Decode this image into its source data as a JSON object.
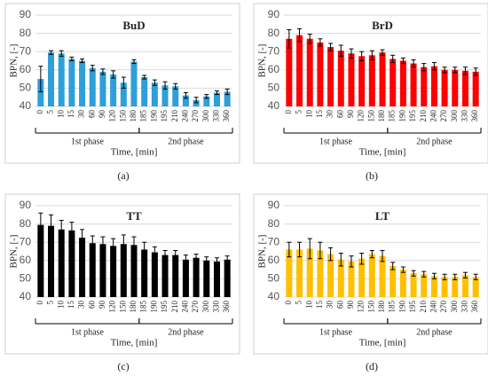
{
  "chart_data": [
    {
      "type": "bar",
      "title": "BuD",
      "label": "(a)",
      "color": "#2e9fd9",
      "ylabel": "BPN, [-]",
      "xlabel": "Time, [min]",
      "categories": [
        "0",
        "5",
        "10",
        "15",
        "30",
        "60",
        "90",
        "120",
        "150",
        "180",
        "185",
        "190",
        "195",
        "210",
        "240",
        "270",
        "300",
        "330",
        "360"
      ],
      "values": [
        55,
        69.5,
        69,
        66,
        65,
        61,
        59,
        57.5,
        53,
        64.5,
        56,
        53,
        51.5,
        51,
        46,
        43.5,
        45.5,
        47.5,
        48
      ],
      "errors": [
        7,
        1,
        1.5,
        1,
        1,
        1.5,
        1.5,
        2,
        3,
        1,
        1,
        1.5,
        2,
        1.5,
        1.5,
        1.5,
        1,
        1,
        1.5
      ],
      "groups": [
        {
          "label": "1st phase",
          "from": "0",
          "to": "180"
        },
        {
          "label": "2nd phase",
          "from": "185",
          "to": "360"
        }
      ],
      "ylim": [
        40,
        90
      ],
      "yticks": [
        40,
        50,
        60,
        70,
        80,
        90
      ],
      "grid": true
    },
    {
      "type": "bar",
      "title": "BrD",
      "label": "(b)",
      "color": "#ff0000",
      "ylabel": "BPN, [-]",
      "xlabel": "Time, [min]",
      "categories": [
        "0",
        "5",
        "10",
        "15",
        "30",
        "60",
        "90",
        "120",
        "150",
        "180",
        "185",
        "190",
        "195",
        "210",
        "240",
        "270",
        "300",
        "330",
        "360"
      ],
      "values": [
        77,
        79,
        77,
        75,
        72.5,
        70.5,
        69,
        67.5,
        68,
        69.5,
        66,
        65,
        63.5,
        61.5,
        62,
        60,
        60,
        59.5,
        59
      ],
      "errors": [
        5,
        3.5,
        2.5,
        2,
        2,
        3,
        2.5,
        2.5,
        2.5,
        1.5,
        2,
        1.5,
        2,
        2,
        2,
        1.5,
        1.5,
        2,
        2
      ],
      "groups": [
        {
          "label": "1st phase",
          "from": "0",
          "to": "180"
        },
        {
          "label": "2nd phase",
          "from": "185",
          "to": "360"
        }
      ],
      "ylim": [
        40,
        90
      ],
      "yticks": [
        40,
        50,
        60,
        70,
        80,
        90
      ],
      "grid": true
    },
    {
      "type": "bar",
      "title": "TT",
      "label": "(c)",
      "color": "#000000",
      "ylabel": "BPN, [-]",
      "xlabel": "Time, [min]",
      "categories": [
        "0",
        "5",
        "10",
        "15",
        "30",
        "60",
        "90",
        "120",
        "150",
        "180",
        "185",
        "190",
        "195",
        "210",
        "240",
        "270",
        "300",
        "330",
        "360"
      ],
      "values": [
        79.5,
        79,
        77,
        76.5,
        72.5,
        69.5,
        69,
        68,
        69,
        68.5,
        66,
        64.5,
        63,
        63,
        60.5,
        61.5,
        60,
        59.5,
        60.5
      ],
      "errors": [
        6.5,
        6,
        5,
        4.5,
        4.5,
        4,
        4,
        4,
        5,
        4.5,
        4,
        3,
        2.5,
        2.5,
        2.5,
        2,
        2,
        2,
        2
      ],
      "groups": [
        {
          "label": "1st phase",
          "from": "0",
          "to": "180"
        },
        {
          "label": "2nd phase",
          "from": "185",
          "to": "360"
        }
      ],
      "ylim": [
        40,
        90
      ],
      "yticks": [
        40,
        50,
        60,
        70,
        80,
        90
      ],
      "grid": true
    },
    {
      "type": "bar",
      "title": "LT",
      "label": "(d)",
      "color": "#ffc000",
      "ylabel": "BPN, [-]",
      "xlabel": "Time, [min]",
      "categories": [
        "0",
        "5",
        "10",
        "15",
        "30",
        "60",
        "90",
        "120",
        "150",
        "180",
        "185",
        "190",
        "195",
        "210",
        "240",
        "270",
        "300",
        "330",
        "360"
      ],
      "values": [
        66,
        66,
        66.5,
        65.5,
        63.5,
        60.5,
        59.5,
        61,
        63.5,
        62.5,
        57,
        55,
        53,
        52.5,
        51.5,
        51,
        51,
        52,
        51
      ],
      "errors": [
        4,
        4,
        5.5,
        4.5,
        3.5,
        3.5,
        3,
        3,
        2,
        3,
        2,
        1.5,
        1.5,
        1.5,
        1.5,
        1.5,
        1.5,
        1.5,
        1.5
      ],
      "groups": [
        {
          "label": "1st phase",
          "from": "0",
          "to": "180"
        },
        {
          "label": "2nd phase",
          "from": "185",
          "to": "360"
        }
      ],
      "ylim": [
        40,
        90
      ],
      "yticks": [
        40,
        50,
        60,
        70,
        80,
        90
      ],
      "grid": true
    }
  ]
}
